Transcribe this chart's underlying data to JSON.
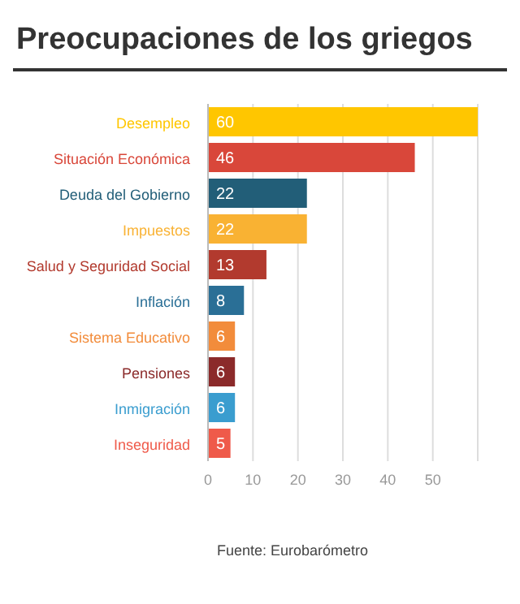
{
  "chart_data": {
    "type": "bar",
    "orientation": "horizontal",
    "title": "Preocupaciones de los griegos",
    "categories": [
      "Desempleo",
      "Situación Económica",
      "Deuda del Gobierno",
      "Impuestos",
      "Salud y Seguridad Social",
      "Inflación",
      "Sistema Educativo",
      "Pensiones",
      "Inmigración",
      "Inseguridad"
    ],
    "values": [
      60,
      46,
      22,
      22,
      13,
      8,
      6,
      6,
      6,
      5
    ],
    "colors": [
      "#ffc600",
      "#d9473a",
      "#225e78",
      "#f9b233",
      "#b23a2e",
      "#2a6f96",
      "#f28c3b",
      "#8b2a2a",
      "#3a9dcf",
      "#ef5a4a"
    ],
    "xlim": [
      0,
      60
    ],
    "xticks": [
      0,
      10,
      20,
      30,
      40,
      50
    ],
    "grid": "x",
    "data_labels": true,
    "annotations": [
      "Fuente: Eurobarómetro"
    ]
  }
}
